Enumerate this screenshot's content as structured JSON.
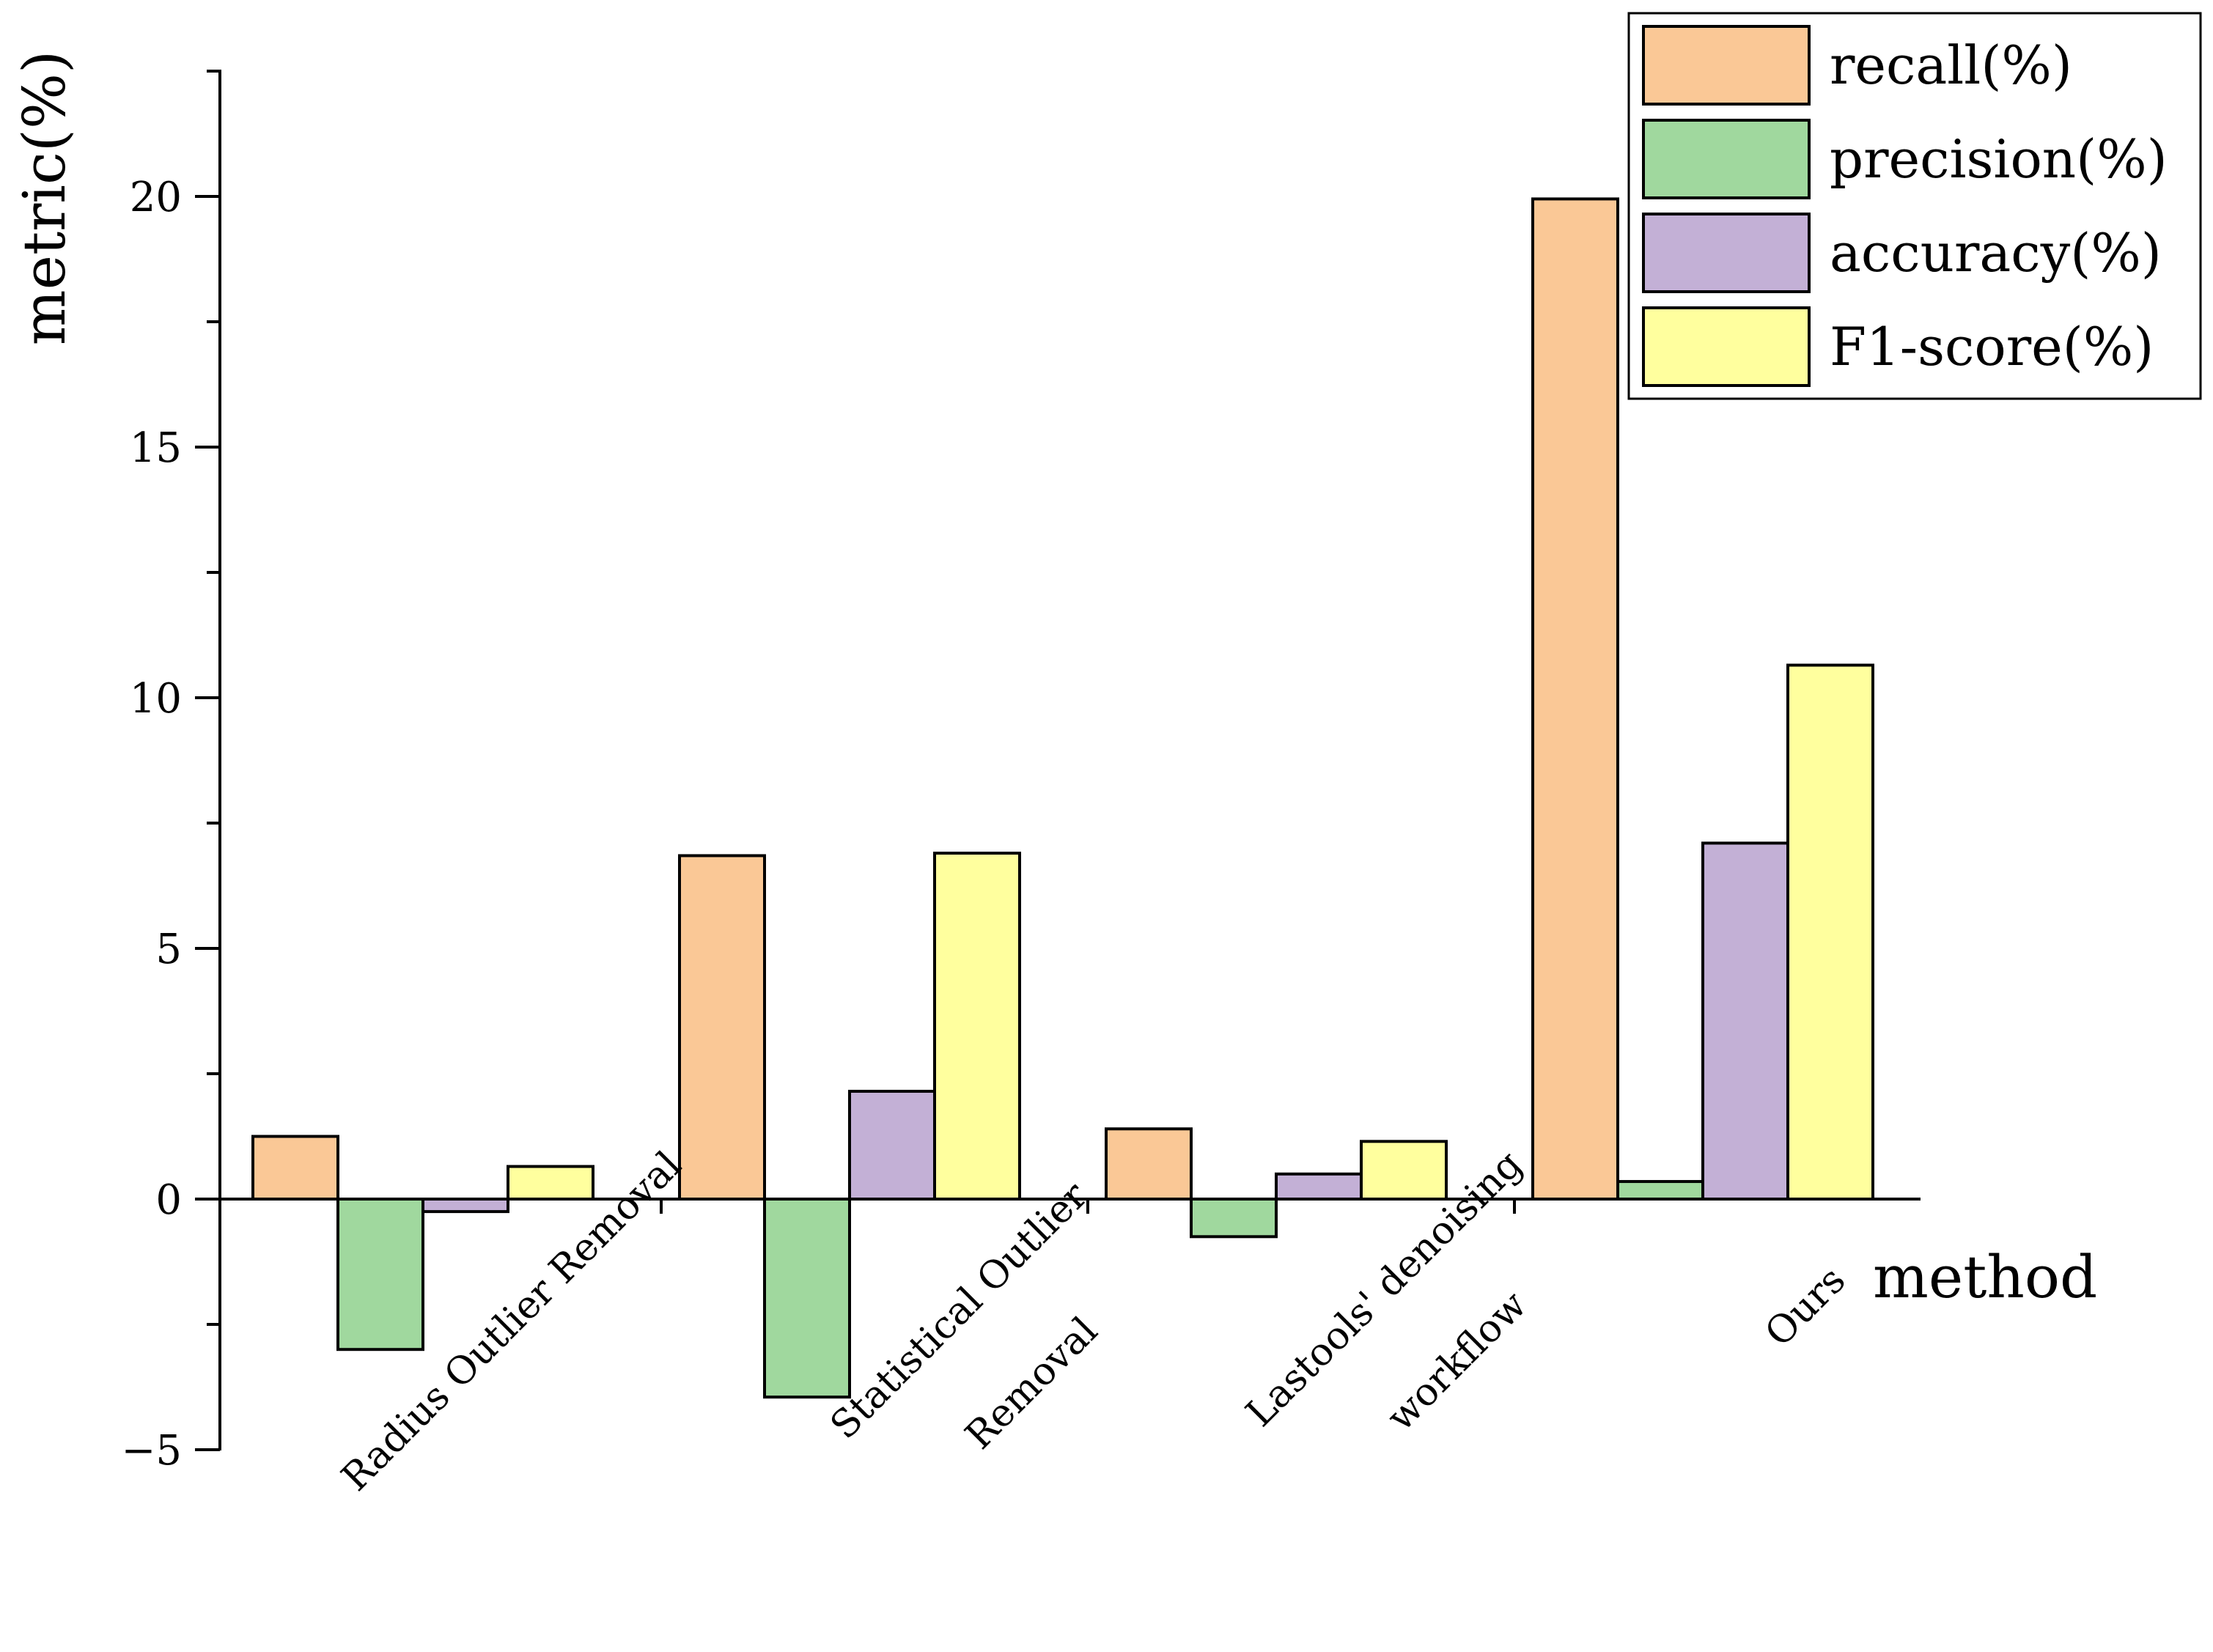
{
  "chart_data": {
    "type": "bar",
    "title": "",
    "xlabel": "method",
    "ylabel": "metric(%)",
    "ylim": [
      -5,
      22.5
    ],
    "yticks": [
      -5,
      0,
      5,
      10,
      15,
      20
    ],
    "ytick_labels": [
      "−5",
      "0",
      "5",
      "10",
      "15",
      "20"
    ],
    "categories": [
      [
        "Radius Outlier Removal"
      ],
      [
        "Statistical Outlier",
        "Removal"
      ],
      [
        "Lastools' denoising",
        "workflow"
      ],
      [
        "Ours"
      ]
    ],
    "series": [
      {
        "name": "recall(%)",
        "color": "#FAC896",
        "values": [
          1.25,
          6.85,
          1.4,
          19.95
        ]
      },
      {
        "name": "precision(%)",
        "color": "#A0D89E",
        "values": [
          -3.0,
          -3.95,
          -0.75,
          0.35
        ]
      },
      {
        "name": "accuracy(%)",
        "color": "#C3B0D6",
        "values": [
          -0.25,
          2.15,
          0.5,
          7.1
        ]
      },
      {
        "name": "F1-score(%)",
        "color": "#FFFF9E",
        "values": [
          0.65,
          6.9,
          1.15,
          10.65
        ]
      }
    ],
    "legend_position": "top-right",
    "grid": false
  }
}
